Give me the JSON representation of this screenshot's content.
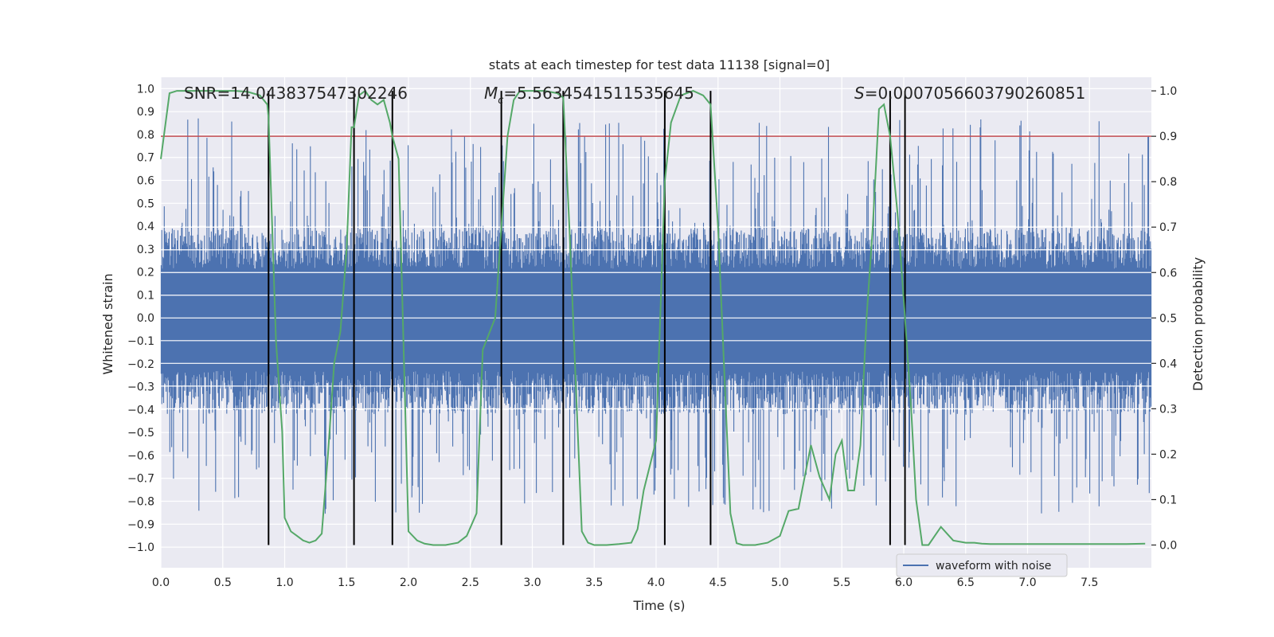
{
  "chart_data": {
    "type": "line",
    "title": "stats at each timestep for test data 11138 [signal=0]",
    "xlabel": "Time (s)",
    "ylabel_left": "Whitened strain",
    "ylabel_right": "Detection probability",
    "xlim": [
      0.0,
      8.0
    ],
    "ylim_left": [
      -1.09,
      1.05
    ],
    "ylim_right": [
      -0.05,
      1.03
    ],
    "x_ticks": [
      0.0,
      0.5,
      1.0,
      1.5,
      2.0,
      2.5,
      3.0,
      3.5,
      4.0,
      4.5,
      5.0,
      5.5,
      6.0,
      6.5,
      7.0,
      7.5
    ],
    "x_tick_labels": [
      "0.0",
      "0.5",
      "1.0",
      "1.5",
      "2.0",
      "2.5",
      "3.0",
      "3.5",
      "4.0",
      "4.5",
      "5.0",
      "5.5",
      "6.0",
      "6.5",
      "7.0",
      "7.5"
    ],
    "y_left_ticks": [
      1.0,
      0.9,
      0.8,
      0.7,
      0.6,
      0.5,
      0.4,
      0.3,
      0.2,
      0.1,
      0.0,
      -0.1,
      -0.2,
      -0.3,
      -0.4,
      -0.5,
      -0.6,
      -0.7,
      -0.8,
      -0.9,
      -1.0
    ],
    "y_left_tick_labels": [
      "1.0",
      "0.9",
      "0.8",
      "0.7",
      "0.6",
      "0.5",
      "0.4",
      "0.3",
      "0.2",
      "0.1",
      "0.0",
      "−0.1",
      "−0.2",
      "−0.3",
      "−0.4",
      "−0.5",
      "−0.6",
      "−0.7",
      "−0.8",
      "−0.9",
      "−1.0"
    ],
    "y_right_ticks": [
      1.0,
      0.9,
      0.8,
      0.7,
      0.6,
      0.5,
      0.4,
      0.3,
      0.2,
      0.1,
      0.0
    ],
    "y_right_tick_labels": [
      "1.0",
      "0.9",
      "0.8",
      "0.7",
      "0.6",
      "0.5",
      "0.4",
      "0.3",
      "0.2",
      "0.1",
      "0.0"
    ],
    "annotations": {
      "snr": "SNR=14.043837547302246",
      "mc_symbol": "M",
      "mc_subscript": "c",
      "mc_value": "=5.5634541511535645",
      "s_symbol": "S",
      "s_value": "=0.0007056603790260851"
    },
    "threshold": 0.9,
    "vertical_lines": [
      0.87,
      1.56,
      1.87,
      2.75,
      3.25,
      4.07,
      4.44,
      5.89,
      6.01
    ],
    "waveform": {
      "name": "waveform with noise",
      "color": "#4c72b0",
      "sample_count": 1600,
      "band_lower": -0.42,
      "band_upper": 0.39,
      "peak_range": [
        -0.86,
        0.87
      ],
      "description_note": "dense noise samples"
    },
    "probability_series": {
      "name": "detection probability",
      "color": "#55a868",
      "x": [
        0.0,
        0.07,
        0.13,
        0.2,
        0.3,
        0.4,
        0.5,
        0.6,
        0.7,
        0.8,
        0.86,
        0.87,
        0.93,
        0.98,
        1.0,
        1.05,
        1.1,
        1.15,
        1.2,
        1.25,
        1.3,
        1.35,
        1.4,
        1.45,
        1.5,
        1.54,
        1.56,
        1.6,
        1.65,
        1.7,
        1.75,
        1.8,
        1.85,
        1.87,
        1.92,
        2.0,
        2.07,
        2.13,
        2.2,
        2.3,
        2.4,
        2.47,
        2.55,
        2.6,
        2.7,
        2.8,
        2.85,
        2.9,
        3.0,
        3.1,
        3.2,
        3.25,
        3.3,
        3.4,
        3.45,
        3.5,
        3.6,
        3.7,
        3.8,
        3.85,
        3.9,
        4.0,
        4.07,
        4.12,
        4.2,
        4.3,
        4.38,
        4.44,
        4.5,
        4.6,
        4.65,
        4.7,
        4.8,
        4.9,
        5.0,
        5.07,
        5.15,
        5.25,
        5.32,
        5.4,
        5.45,
        5.5,
        5.55,
        5.6,
        5.65,
        5.7,
        5.75,
        5.8,
        5.84,
        5.89,
        5.95,
        6.01,
        6.06,
        6.1,
        6.15,
        6.2,
        6.25,
        6.3,
        6.4,
        6.5,
        6.57,
        6.63,
        6.7,
        6.8,
        6.9,
        7.0,
        7.2,
        7.4,
        7.6,
        7.8,
        7.95
      ],
      "values": [
        0.85,
        0.995,
        1.0,
        1.0,
        1.0,
        1.0,
        1.0,
        1.0,
        0.998,
        0.99,
        0.97,
        0.94,
        0.45,
        0.25,
        0.06,
        0.03,
        0.02,
        0.01,
        0.005,
        0.01,
        0.025,
        0.2,
        0.4,
        0.47,
        0.65,
        0.92,
        0.92,
        0.99,
        1.0,
        0.98,
        0.97,
        0.98,
        0.93,
        0.9,
        0.85,
        0.03,
        0.01,
        0.003,
        0.0,
        0.0,
        0.005,
        0.02,
        0.07,
        0.43,
        0.5,
        0.9,
        0.98,
        1.0,
        1.0,
        1.0,
        0.995,
        0.985,
        0.7,
        0.03,
        0.005,
        0.0,
        0.0,
        0.002,
        0.005,
        0.035,
        0.12,
        0.23,
        0.8,
        0.93,
        0.99,
        1.0,
        0.99,
        0.97,
        0.7,
        0.07,
        0.004,
        0.0,
        0.0,
        0.005,
        0.02,
        0.075,
        0.08,
        0.22,
        0.15,
        0.1,
        0.2,
        0.23,
        0.12,
        0.12,
        0.22,
        0.5,
        0.7,
        0.96,
        0.97,
        0.9,
        0.73,
        0.5,
        0.3,
        0.1,
        0.0,
        0.0,
        0.02,
        0.04,
        0.01,
        0.005,
        0.005,
        0.003,
        0.002,
        0.002,
        0.002,
        0.002,
        0.002,
        0.002,
        0.002,
        0.002,
        0.003
      ]
    },
    "legend": {
      "label": "waveform with noise",
      "position": "bottom-right"
    },
    "grid": true,
    "colors": {
      "axes_background": "#eaeaf2",
      "grid": "#ffffff",
      "waveform": "#4c72b0",
      "probability": "#55a868",
      "threshold": "#c44e52",
      "vertical_lines": "#000000"
    }
  }
}
